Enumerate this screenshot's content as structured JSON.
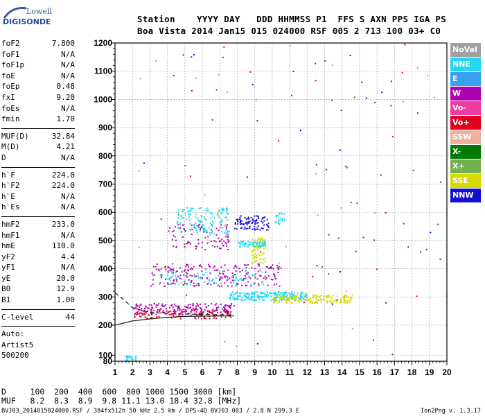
{
  "logo": {
    "top_text": "Lowell",
    "bottom_text": "DIGISONDE"
  },
  "header": {
    "line1": "Station    YYYY DAY   DDD HHMMSS P1  FFS S AXN PPS IGA PS",
    "line2": "Boa Vista 2014 Jan15 015 024000 RSF 005 2 713 100 03+ C0"
  },
  "parameters": [
    {
      "label": "foF2",
      "value": "7.800"
    },
    {
      "label": "foF1",
      "value": "N/A"
    },
    {
      "label": "foF1p",
      "value": "N/A"
    },
    {
      "label": "foE",
      "value": "N/A"
    },
    {
      "label": "foEp",
      "value": "0.48"
    },
    {
      "label": "fxI",
      "value": "9.20"
    },
    {
      "label": "foEs",
      "value": "N/A"
    },
    {
      "label": "fmin",
      "value": "1.70"
    },
    {
      "sep": true
    },
    {
      "label": "MUF(D)",
      "value": "32.84"
    },
    {
      "label": "M(D)",
      "value": "4.21"
    },
    {
      "label": "D",
      "value": "N/A"
    },
    {
      "sep": true
    },
    {
      "label": "h`F",
      "value": "224.0"
    },
    {
      "label": "h`F2",
      "value": "224.0"
    },
    {
      "label": "h`E",
      "value": "N/A"
    },
    {
      "label": "h`Es",
      "value": "N/A"
    },
    {
      "sep": true
    },
    {
      "label": "hmF2",
      "value": "233.0"
    },
    {
      "label": "hmF1",
      "value": "N/A"
    },
    {
      "label": "hmE",
      "value": "110.0"
    },
    {
      "label": "yF2",
      "value": "4.4"
    },
    {
      "label": "yF1",
      "value": "N/A"
    },
    {
      "label": "yE",
      "value": "20.0"
    },
    {
      "label": "B0",
      "value": "12.9"
    },
    {
      "label": "B1",
      "value": "1.00"
    },
    {
      "sep": true
    },
    {
      "label": "C-level",
      "value": "44"
    },
    {
      "sep": true
    },
    {
      "text": "Auto:"
    },
    {
      "text": "Artist5"
    },
    {
      "text": "500200"
    }
  ],
  "legend": [
    {
      "label": "NoVal",
      "color": "#a0a0a0"
    },
    {
      "label": "NNE",
      "color": "#22d8f0"
    },
    {
      "label": "E",
      "color": "#3aa0f0"
    },
    {
      "label": "W",
      "color": "#b000b0"
    },
    {
      "label": "Vo-",
      "color": "#f03aa0"
    },
    {
      "label": "Vo+",
      "color": "#e00020"
    },
    {
      "label": "SSW",
      "color": "#f0b0a0"
    },
    {
      "label": "X-",
      "color": "#007a00"
    },
    {
      "label": "X+",
      "color": "#70b050"
    },
    {
      "label": "SSE",
      "color": "#d8d800"
    },
    {
      "label": "NNW",
      "color": "#1010d0"
    }
  ],
  "bottom": {
    "d_row": "D     100  200  400  600  800 1000 1500 3000 [km]",
    "muf_row": "MUF   8.2  8.3  8.9  9.8 11.1 13.0 18.4 32.8 [MHz]"
  },
  "footer": {
    "left": "BVJ03_2014015024000.RSF / 384fx512h 50 kHz 2.5 km / DPS-4D BVJ03 003 / 2.8 N 299.3 E",
    "right": "Ion2Png v. 1.3.17"
  },
  "chart_data": {
    "type": "scatter",
    "xlim": [
      1,
      20
    ],
    "ylim": [
      80,
      1200
    ],
    "x_ticks": [
      1,
      2,
      3,
      4,
      5,
      6,
      7,
      8,
      9,
      10,
      11,
      12,
      13,
      14,
      15,
      16,
      17,
      18,
      19,
      20
    ],
    "y_ticks": [
      80,
      100,
      200,
      300,
      400,
      500,
      600,
      700,
      800,
      900,
      1000,
      1100,
      1200
    ],
    "grid": true,
    "clusters": [
      {
        "name": "F2 trace (NNE)",
        "color": "#22d8f0",
        "x": [
          7.5,
          12.0
        ],
        "y": [
          290,
          320
        ],
        "n": 260
      },
      {
        "name": "F2 trace (SSE)",
        "color": "#d8d800",
        "x": [
          10.0,
          14.6
        ],
        "y": [
          280,
          310
        ],
        "n": 160
      },
      {
        "name": "F trace (W)",
        "color": "#b000b0",
        "x": [
          2.0,
          7.8
        ],
        "y": [
          240,
          280
        ],
        "n": 200
      },
      {
        "name": "F trace low (Vo+)",
        "color": "#e00020",
        "x": [
          2.0,
          7.6
        ],
        "y": [
          225,
          255
        ],
        "n": 100
      },
      {
        "name": "2F multihop (W)",
        "color": "#b000b0",
        "x": [
          3.0,
          10.5
        ],
        "y": [
          340,
          420
        ],
        "n": 220
      },
      {
        "name": "2F multihop (NNE)",
        "color": "#22d8f0",
        "x": [
          3.5,
          9.5
        ],
        "y": [
          340,
          400
        ],
        "n": 80
      },
      {
        "name": "Es band (SSE)",
        "color": "#d8d800",
        "x": [
          8.8,
          9.6
        ],
        "y": [
          420,
          510
        ],
        "n": 80
      },
      {
        "name": "Band 480-500 (NNE)",
        "color": "#22d8f0",
        "x": [
          8.0,
          9.6
        ],
        "y": [
          480,
          500
        ],
        "n": 60
      },
      {
        "name": "Upper band (W)",
        "color": "#b000b0",
        "x": [
          4.0,
          7.5
        ],
        "y": [
          470,
          560
        ],
        "n": 90
      },
      {
        "name": "Upper band (NNE)",
        "color": "#22d8f0",
        "x": [
          4.5,
          7.5
        ],
        "y": [
          520,
          620
        ],
        "n": 140
      },
      {
        "name": "Upper band (NNW)",
        "color": "#1010d0",
        "x": [
          7.8,
          9.8
        ],
        "y": [
          540,
          590
        ],
        "n": 90
      },
      {
        "name": "Upper band right (NNE)",
        "color": "#22d8f0",
        "x": [
          10.0,
          10.7
        ],
        "y": [
          560,
          600
        ],
        "n": 25
      },
      {
        "name": "Low echoes (NNE)",
        "color": "#22d8f0",
        "x": [
          1.6,
          2.2
        ],
        "y": [
          80,
          100
        ],
        "n": 25
      },
      {
        "name": "Scattered noise (Vo+)",
        "color": "#e00020",
        "x": [
          2.0,
          20.0
        ],
        "y": [
          250,
          1200
        ],
        "n": 45
      },
      {
        "name": "Scattered noise (X-)",
        "color": "#007a00",
        "x": [
          12.0,
          20.0
        ],
        "y": [
          100,
          1200
        ],
        "n": 25
      },
      {
        "name": "Scattered noise (NNW)",
        "color": "#1010d0",
        "x": [
          2.0,
          20.0
        ],
        "y": [
          100,
          1200
        ],
        "n": 20
      },
      {
        "name": "Scattered noise (NoVal)",
        "color": "#a0a0a0",
        "x": [
          1.0,
          20.0
        ],
        "y": [
          100,
          1200
        ],
        "n": 30
      }
    ],
    "profile_curves": [
      {
        "name": "true-height profile",
        "x": [
          1.0,
          2.0,
          3.0,
          4.0,
          5.0,
          6.0,
          7.0,
          7.8
        ],
        "y": [
          200,
          215,
          222,
          228,
          231,
          232,
          233,
          233
        ]
      },
      {
        "name": "dashed extension",
        "x": [
          1.0,
          1.5,
          2.0,
          3.0,
          4.5,
          6.0,
          7.8
        ],
        "y": [
          315,
          290,
          262,
          245,
          240,
          238,
          236
        ]
      }
    ]
  }
}
